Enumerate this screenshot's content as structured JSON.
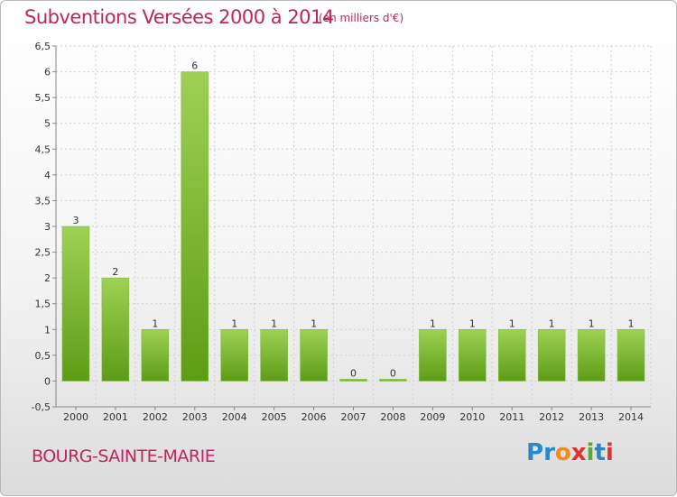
{
  "header": {
    "title": "Subventions Versées 2000 à 2014",
    "subtitle": "(en milliers d'€)"
  },
  "footer": {
    "place": "BOURG-SAINTE-MARIE",
    "logo": "Proxiti"
  },
  "colors": {
    "title": "#c0245e",
    "bar_top": "#9ed155",
    "bar_bottom": "#5d9c16",
    "grid": "#cfcfcf",
    "logo_letters": [
      "#2a87c8",
      "#2a87c8",
      "#f08c1e",
      "#e0322b",
      "#5aa83a",
      "#2a87c8",
      "#e0322b"
    ]
  },
  "chart_data": {
    "type": "bar",
    "title": "Subventions Versées 2000 à 2014",
    "xlabel": "",
    "ylabel": "",
    "categories": [
      "2000",
      "2001",
      "2002",
      "2003",
      "2004",
      "2005",
      "2006",
      "2007",
      "2008",
      "2009",
      "2010",
      "2011",
      "2012",
      "2013",
      "2014"
    ],
    "values": [
      3,
      2,
      1,
      6,
      1,
      1,
      1,
      0,
      0,
      1,
      1,
      1,
      1,
      1,
      1
    ],
    "ylim": [
      -0.5,
      6.5
    ],
    "yticks": [
      "-0,5",
      "0",
      "0,5",
      "1",
      "1,5",
      "2",
      "2,5",
      "3",
      "3,5",
      "4",
      "4,5",
      "5",
      "5,5",
      "6",
      "6,5"
    ],
    "ytick_values": [
      -0.5,
      0,
      0.5,
      1,
      1.5,
      2,
      2.5,
      3,
      3.5,
      4,
      4.5,
      5,
      5.5,
      6,
      6.5
    ],
    "grid": true,
    "legend": "none"
  }
}
